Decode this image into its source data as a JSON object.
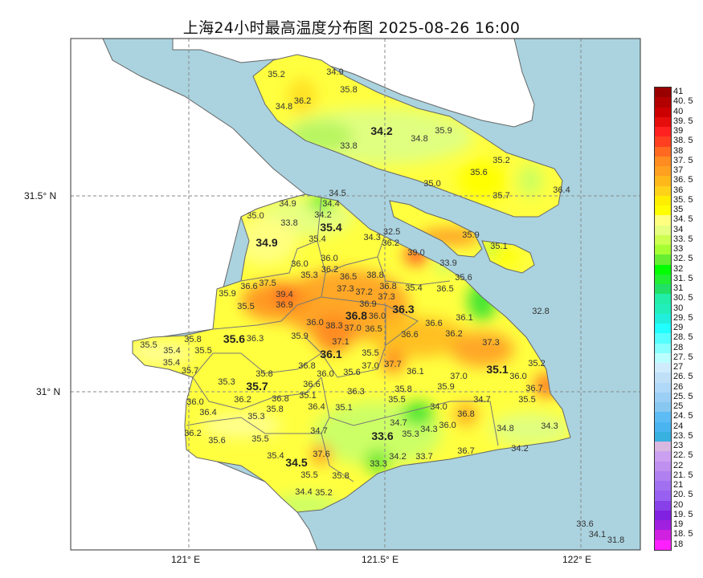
{
  "title": "上海24小时最高温度分布图 2025-08-26 16:00",
  "axes": {
    "lon_ticks": [
      "121° E",
      "121.5° E",
      "122° E"
    ],
    "lat_ticks": [
      "31.5° N",
      "31° N"
    ]
  },
  "colors": {
    "water": "#aad3df",
    "outside_land": "#ffffff",
    "border": "#666666",
    "grid": "#888888"
  },
  "district_values": [
    "34.2",
    "35.4",
    "34.9",
    "36.3",
    "36.8",
    "35.6",
    "36.1",
    "35.1",
    "35.7",
    "33.6",
    "34.5"
  ],
  "stations": [
    "35.2",
    "34.9",
    "36.2",
    "35.8",
    "34.8",
    "35.9",
    "34.8",
    "33.8",
    "35.2",
    "35.6",
    "35.0",
    "36.4",
    "35.7",
    "34.5",
    "34.9",
    "34.4",
    "34.2",
    "35.0",
    "33.8",
    "35.4",
    "32.5",
    "34.3",
    "36.2",
    "39.0",
    "33.9",
    "36.0",
    "36.0",
    "35.3",
    "36.2",
    "35.6",
    "36.5",
    "37.5",
    "36.6",
    "37.3",
    "37.2",
    "38.8",
    "36.8",
    "35.4",
    "36.5",
    "37.3",
    "35.9",
    "39.4",
    "36.9",
    "36.9",
    "35.5",
    "36.0",
    "32.8",
    "36.1",
    "36.0",
    "38.3",
    "37.0",
    "36.5",
    "36.6",
    "35.9",
    "36.6",
    "36.2",
    "36.3",
    "35.8",
    "37.3",
    "37.1",
    "35.5",
    "35.4",
    "35.5",
    "35.5",
    "35.2",
    "35.4",
    "36.8",
    "37.7",
    "37.0",
    "36.1",
    "35.7",
    "36.0",
    "35.6",
    "36.0",
    "37.0",
    "35.8",
    "35.3",
    "35.9",
    "36.7",
    "36.6",
    "36.3",
    "35.8",
    "35.5",
    "35.5",
    "34.7",
    "36.2",
    "35.1",
    "36.4",
    "36.8",
    "35.8",
    "36.0",
    "36.4",
    "35.1",
    "34.0",
    "36.8",
    "35.3",
    "34.8",
    "34.3",
    "34.7",
    "34.7",
    "35.3",
    "34.3",
    "36.0",
    "36.2",
    "35.6",
    "35.5",
    "34.2",
    "36.7",
    "35.4",
    "37.6",
    "34.2",
    "33.7",
    "33.3",
    "35.5",
    "35.8",
    "34.4",
    "35.2",
    "33.6",
    "34.1",
    "31.8",
    "35.9",
    "35.1"
  ],
  "colorbar": {
    "labels": [
      "41",
      "40. 5",
      "40",
      "39. 5",
      "39",
      "38. 5",
      "38",
      "37. 5",
      "37",
      "36. 5",
      "36",
      "35. 5",
      "35",
      "34. 5",
      "34",
      "33. 5",
      "33",
      "32. 5",
      "32",
      "31. 5",
      "31",
      "30. 5",
      "30",
      "29. 5",
      "29",
      "28. 5",
      "28",
      "27. 5",
      "27",
      "26. 5",
      "26",
      "25. 5",
      "25",
      "24. 5",
      "24",
      "23. 5",
      "23",
      "22. 5",
      "22",
      "21. 5",
      "21",
      "20. 5",
      "20",
      "19. 5",
      "19",
      "18. 5",
      "18"
    ],
    "colors": [
      "#990000",
      "#b30000",
      "#cc0000",
      "#e60d0d",
      "#ff2020",
      "#ff4020",
      "#ff6a20",
      "#ff8c20",
      "#ffa020",
      "#ffb81a",
      "#ffd21a",
      "#ffee00",
      "#ffff00",
      "#ffff80",
      "#e6ff80",
      "#ccff50",
      "#a6ff33",
      "#66ee33",
      "#00ff00",
      "#22ee33",
      "#22e066",
      "#22eeaa",
      "#22eebb",
      "#22eedd",
      "#22ffff",
      "#55ffff",
      "#88ffff",
      "#bbffff",
      "#d0ecfc",
      "#c0e0f8",
      "#b0d8f8",
      "#9ccff5",
      "#88c8f0",
      "#5ebcf5",
      "#4ab4f0",
      "#38b0e0",
      "#d8b8e0",
      "#cca0f0",
      "#c090f0",
      "#b080f0",
      "#a070f0",
      "#9860f0",
      "#8840e8",
      "#8020e0",
      "#a020e0",
      "#d020e0",
      "#ff20ff"
    ]
  }
}
